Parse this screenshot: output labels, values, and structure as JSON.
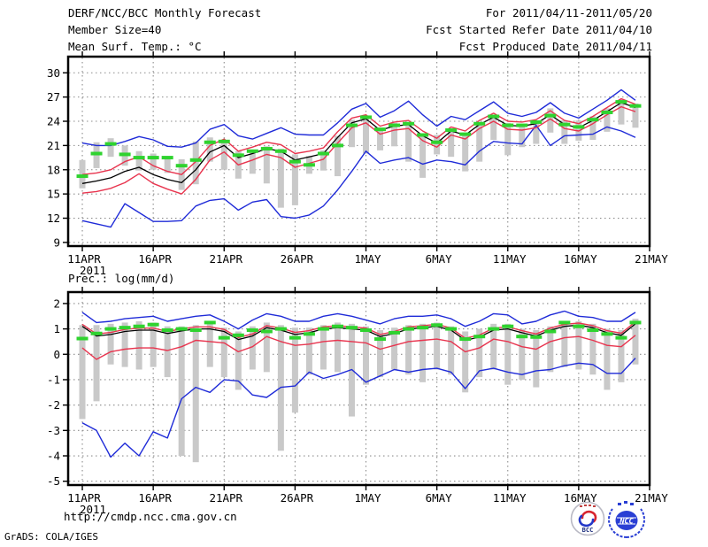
{
  "header": {
    "title": "DERF/NCC/BCC Monthly Forecast",
    "member_size": "Member Size=40",
    "temp_chart_title": "Mean Surf. Temp.: °C",
    "for_period": "For 2011/04/11-2011/05/20",
    "refer_date": "Fcst Started Refer Date 2011/04/10",
    "produced_date": "Fcst Produced Date 2011/04/11"
  },
  "footer": {
    "url": "http://cmdp.ncc.cma.gov.cn",
    "credit": "GrADS: COLA/IGES",
    "logos": {
      "bcc": "BCC",
      "ncc": "NCC"
    }
  },
  "colors": {
    "blue": "#1f2bd8",
    "red": "#e8344e",
    "black": "#000000",
    "green": "#2fd32f",
    "bar": "#c9c9c9",
    "grid": "#8c8c8c",
    "frame": "#000000"
  },
  "chart_data": [
    {
      "type": "line",
      "title": "Mean Surf. Temp.: °C",
      "xlabel": "",
      "ylabel": "°C",
      "grid": true,
      "legend_position": "none",
      "x_tick_labels": [
        "11APR",
        "16APR",
        "21APR",
        "26APR",
        "1MAY",
        "6MAY",
        "11MAY",
        "16MAY",
        "21MAY"
      ],
      "x_tick_days": [
        0,
        5,
        10,
        15,
        20,
        25,
        30,
        35,
        40
      ],
      "year_label": "2011",
      "ylim": [
        8.55,
        32.0
      ],
      "yticks": [
        9,
        12,
        15,
        18,
        21,
        24,
        27,
        30
      ],
      "series": [
        {
          "name": "ensemble-max",
          "color": "blue",
          "values": [
            21.3,
            21.0,
            21.0,
            21.5,
            22.1,
            21.7,
            20.9,
            20.8,
            21.3,
            23.0,
            23.6,
            22.2,
            21.8,
            22.5,
            23.2,
            22.4,
            22.3,
            22.3,
            23.8,
            25.5,
            26.2,
            24.5,
            25.3,
            26.5,
            24.8,
            23.4,
            24.6,
            24.2,
            25.3,
            26.4,
            25.0,
            24.6,
            25.1,
            26.3,
            25.0,
            24.4,
            25.5,
            26.6,
            27.9,
            26.6
          ]
        },
        {
          "name": "ensemble-min",
          "color": "blue",
          "values": [
            11.7,
            11.3,
            10.9,
            13.8,
            12.7,
            11.6,
            11.6,
            11.7,
            13.5,
            14.2,
            14.4,
            13.0,
            14.0,
            14.3,
            12.2,
            12.0,
            12.4,
            13.5,
            15.5,
            17.8,
            20.3,
            18.8,
            19.2,
            19.5,
            18.7,
            19.2,
            19.0,
            18.6,
            20.3,
            21.5,
            21.3,
            21.2,
            23.5,
            21.0,
            22.2,
            22.3,
            22.4,
            23.3,
            22.8,
            22.0
          ]
        },
        {
          "name": "upper-band",
          "color": "red",
          "values": [
            17.4,
            17.6,
            18.0,
            19.0,
            19.6,
            18.5,
            17.8,
            17.4,
            19.0,
            21.0,
            21.8,
            20.3,
            20.8,
            21.4,
            21.1,
            20.0,
            20.3,
            20.7,
            22.7,
            24.4,
            24.8,
            23.4,
            23.9,
            24.1,
            22.8,
            21.9,
            23.3,
            22.8,
            24.1,
            25.0,
            24.0,
            23.9,
            24.2,
            25.3,
            24.1,
            23.7,
            24.6,
            25.7,
            26.8,
            26.1
          ]
        },
        {
          "name": "lower-band",
          "color": "red",
          "values": [
            15.1,
            15.3,
            15.7,
            16.4,
            17.5,
            16.3,
            15.6,
            15.0,
            16.8,
            19.2,
            20.2,
            18.6,
            19.2,
            19.9,
            19.5,
            18.3,
            18.8,
            19.3,
            21.3,
            23.2,
            23.8,
            22.4,
            22.9,
            23.1,
            21.6,
            20.8,
            22.3,
            21.8,
            23.1,
            24.0,
            23.0,
            22.9,
            23.2,
            24.3,
            23.1,
            22.8,
            23.7,
            24.8,
            25.8,
            25.2
          ]
        },
        {
          "name": "ensemble-mean",
          "color": "black",
          "values": [
            16.3,
            16.6,
            17.0,
            17.8,
            18.3,
            17.4,
            16.8,
            16.4,
            18.0,
            20.2,
            21.0,
            19.5,
            20.0,
            20.6,
            20.3,
            19.2,
            19.6,
            20.0,
            22.0,
            23.8,
            24.3,
            22.9,
            23.4,
            23.6,
            22.2,
            21.3,
            22.8,
            22.3,
            23.6,
            24.5,
            23.5,
            23.4,
            23.7,
            24.8,
            23.6,
            23.2,
            24.1,
            25.2,
            26.3,
            25.7
          ]
        },
        {
          "name": "observation",
          "color": "green",
          "style": "dashes",
          "values": [
            17.2,
            20.0,
            21.2,
            19.9,
            19.5,
            19.5,
            19.5,
            18.5,
            19.2,
            21.4,
            21.5,
            19.8,
            20.3,
            20.6,
            20.3,
            19.0,
            18.6,
            20.0,
            21.0,
            23.5,
            24.5,
            23.0,
            23.5,
            23.7,
            22.3,
            21.4,
            22.9,
            22.4,
            23.7,
            24.6,
            23.5,
            23.5,
            23.9,
            24.7,
            23.6,
            23.3,
            24.2,
            25.1,
            26.4,
            25.9
          ]
        }
      ],
      "bars": {
        "name": "spread-bar",
        "ranges": [
          [
            15.7,
            19.2
          ],
          [
            18.2,
            21.4
          ],
          [
            19.6,
            21.9
          ],
          [
            18.5,
            21.0
          ],
          [
            17.9,
            20.3
          ],
          [
            18.0,
            20.0
          ],
          [
            17.6,
            19.6
          ],
          [
            15.5,
            19.3
          ],
          [
            16.2,
            21.5
          ],
          [
            19.0,
            22.0
          ],
          [
            18.0,
            21.5
          ],
          [
            16.9,
            20.3
          ],
          [
            17.5,
            20.2
          ],
          [
            16.3,
            20.9
          ],
          [
            13.3,
            20.6
          ],
          [
            13.6,
            19.9
          ],
          [
            17.5,
            19.7
          ],
          [
            17.9,
            20.4
          ],
          [
            17.2,
            22.2
          ],
          [
            20.8,
            24.2
          ],
          [
            20.0,
            24.6
          ],
          [
            20.4,
            23.2
          ],
          [
            20.9,
            23.8
          ],
          [
            19.0,
            23.8
          ],
          [
            17.0,
            22.3
          ],
          [
            19.9,
            22.3
          ],
          [
            19.6,
            23.0
          ],
          [
            17.8,
            22.4
          ],
          [
            19.0,
            23.8
          ],
          [
            21.7,
            24.8
          ],
          [
            19.8,
            23.8
          ],
          [
            20.8,
            23.5
          ],
          [
            21.2,
            24.1
          ],
          [
            22.6,
            25.6
          ],
          [
            21.2,
            24.1
          ],
          [
            21.6,
            24.1
          ],
          [
            21.7,
            24.6
          ],
          [
            22.7,
            25.6
          ],
          [
            23.6,
            26.7
          ],
          [
            23.2,
            26.2
          ]
        ]
      }
    },
    {
      "type": "line",
      "title": "Prec.: log(mm/d)",
      "xlabel": "",
      "ylabel": "log(mm/d)",
      "grid": true,
      "legend_position": "none",
      "x_tick_labels": [
        "11APR",
        "16APR",
        "21APR",
        "26APR",
        "1MAY",
        "6MAY",
        "11MAY",
        "16MAY",
        "21MAY"
      ],
      "x_tick_days": [
        0,
        5,
        10,
        15,
        20,
        25,
        30,
        35,
        40
      ],
      "year_label": "2011",
      "ylim": [
        -5.15,
        2.45
      ],
      "yticks": [
        -5,
        -4,
        -3,
        -2,
        -1,
        0,
        1,
        2
      ],
      "series": [
        {
          "name": "ensemble-max",
          "color": "blue",
          "values": [
            1.65,
            1.25,
            1.3,
            1.4,
            1.45,
            1.5,
            1.3,
            1.4,
            1.5,
            1.55,
            1.3,
            1.0,
            1.35,
            1.6,
            1.5,
            1.3,
            1.3,
            1.5,
            1.6,
            1.5,
            1.35,
            1.2,
            1.4,
            1.5,
            1.5,
            1.55,
            1.4,
            1.1,
            1.3,
            1.6,
            1.55,
            1.2,
            1.3,
            1.55,
            1.7,
            1.5,
            1.45,
            1.3,
            1.3,
            1.65
          ]
        },
        {
          "name": "ensemble-min",
          "color": "blue",
          "values": [
            -2.7,
            -3.0,
            -4.05,
            -3.5,
            -4.0,
            -3.05,
            -3.3,
            -1.75,
            -1.3,
            -1.5,
            -1.0,
            -1.05,
            -1.6,
            -1.7,
            -1.3,
            -1.25,
            -0.7,
            -0.95,
            -0.8,
            -0.6,
            -1.1,
            -0.85,
            -0.6,
            -0.7,
            -0.6,
            -0.55,
            -0.7,
            -1.35,
            -0.65,
            -0.55,
            -0.7,
            -0.8,
            -0.65,
            -0.6,
            -0.45,
            -0.35,
            -0.4,
            -0.75,
            -0.75,
            -0.15
          ]
        },
        {
          "name": "upper-band",
          "color": "red",
          "values": [
            1.18,
            0.8,
            0.86,
            0.98,
            1.03,
            1.03,
            0.9,
            1.0,
            1.08,
            1.08,
            0.98,
            0.66,
            0.8,
            1.13,
            1.03,
            0.86,
            0.93,
            1.08,
            1.13,
            1.08,
            1.03,
            0.78,
            0.9,
            1.08,
            1.13,
            1.18,
            1.03,
            0.63,
            0.76,
            1.03,
            1.08,
            0.93,
            0.8,
            1.03,
            1.18,
            1.23,
            1.13,
            0.93,
            0.83,
            1.28
          ]
        },
        {
          "name": "lower-band",
          "color": "red",
          "values": [
            0.25,
            -0.2,
            0.1,
            0.2,
            0.25,
            0.25,
            0.15,
            0.3,
            0.55,
            0.5,
            0.45,
            0.1,
            0.3,
            0.7,
            0.5,
            0.35,
            0.4,
            0.5,
            0.55,
            0.5,
            0.45,
            0.2,
            0.35,
            0.5,
            0.55,
            0.6,
            0.5,
            0.1,
            0.25,
            0.6,
            0.5,
            0.3,
            0.2,
            0.5,
            0.65,
            0.7,
            0.55,
            0.35,
            0.3,
            0.75
          ]
        },
        {
          "name": "ensemble-mean",
          "color": "black",
          "values": [
            1.1,
            0.72,
            0.78,
            0.9,
            0.95,
            0.95,
            0.82,
            0.92,
            1.0,
            1.0,
            0.9,
            0.58,
            0.72,
            1.05,
            0.95,
            0.78,
            0.85,
            1.0,
            1.05,
            1.0,
            0.95,
            0.7,
            0.82,
            1.0,
            1.05,
            1.1,
            0.95,
            0.55,
            0.68,
            0.95,
            1.0,
            0.85,
            0.72,
            0.95,
            1.1,
            1.15,
            1.05,
            0.85,
            0.75,
            1.2
          ]
        },
        {
          "name": "observation",
          "color": "green",
          "style": "dashes",
          "values": [
            0.62,
            0.82,
            1.0,
            1.05,
            1.1,
            1.17,
            0.95,
            1.0,
            0.95,
            1.25,
            0.65,
            0.75,
            0.95,
            0.9,
            1.0,
            0.65,
            0.8,
            1.0,
            1.1,
            1.05,
            0.95,
            0.6,
            0.85,
            1.0,
            1.05,
            1.15,
            1.0,
            0.6,
            0.7,
            1.0,
            1.1,
            0.7,
            0.68,
            0.9,
            1.25,
            1.1,
            0.95,
            0.8,
            0.65,
            1.25
          ]
        }
      ],
      "bars": {
        "name": "spread-bar",
        "ranges": [
          [
            -2.55,
            1.15
          ],
          [
            -1.85,
            1.15
          ],
          [
            -0.4,
            1.2
          ],
          [
            -0.5,
            1.25
          ],
          [
            -0.6,
            1.3
          ],
          [
            -0.5,
            1.25
          ],
          [
            -0.9,
            1.1
          ],
          [
            -4.0,
            1.1
          ],
          [
            -4.25,
            1.15
          ],
          [
            -0.5,
            1.2
          ],
          [
            -0.9,
            1.05
          ],
          [
            -1.4,
            0.9
          ],
          [
            -0.6,
            1.1
          ],
          [
            -0.7,
            1.25
          ],
          [
            -3.8,
            1.15
          ],
          [
            -2.3,
            1.05
          ],
          [
            -0.8,
            1.05
          ],
          [
            -0.6,
            1.15
          ],
          [
            -0.7,
            1.25
          ],
          [
            -2.45,
            1.2
          ],
          [
            -1.2,
            1.1
          ],
          [
            -0.9,
            0.95
          ],
          [
            -0.6,
            1.05
          ],
          [
            -0.8,
            1.15
          ],
          [
            -1.1,
            1.2
          ],
          [
            -0.6,
            1.25
          ],
          [
            -0.8,
            1.1
          ],
          [
            -1.5,
            0.9
          ],
          [
            -0.9,
            1.0
          ],
          [
            -0.6,
            1.2
          ],
          [
            -1.2,
            1.2
          ],
          [
            -1.0,
            1.0
          ],
          [
            -1.3,
            0.95
          ],
          [
            -0.7,
            1.1
          ],
          [
            -0.5,
            1.3
          ],
          [
            -0.6,
            1.3
          ],
          [
            -0.8,
            1.2
          ],
          [
            -1.4,
            1.0
          ],
          [
            -1.1,
            0.95
          ],
          [
            -0.4,
            1.4
          ]
        ]
      }
    }
  ]
}
